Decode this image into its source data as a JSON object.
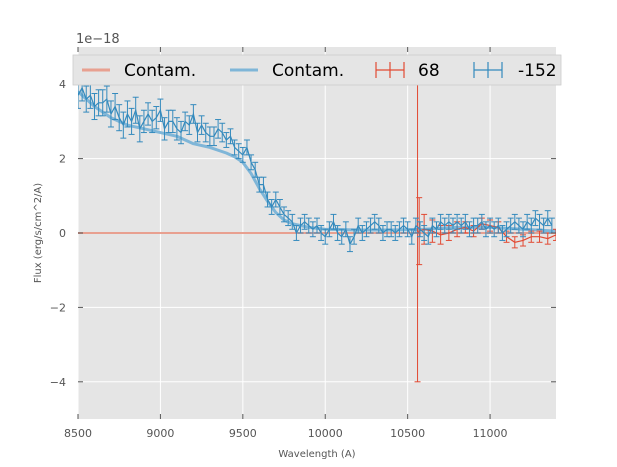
{
  "chart_data": {
    "type": "line",
    "title": "",
    "xlabel": "Wavelength (A)",
    "ylabel": "Flux (erg/s/cm^2/A)",
    "offset_text": "1e−18",
    "y_scale_factor": 1e-18,
    "xlim": [
      8500,
      11400
    ],
    "ylim": [
      -5,
      5
    ],
    "xticks": [
      8500,
      9000,
      9500,
      10000,
      10500,
      11000
    ],
    "xtick_labels": [
      "8500",
      "9000",
      "9500",
      "10000",
      "10500",
      "11000"
    ],
    "yticks": [
      -4,
      -2,
      0,
      2,
      4
    ],
    "ytick_labels": [
      "−4",
      "−2",
      "0",
      "2",
      "4"
    ],
    "grid": true,
    "legend_position": "top",
    "series": [
      {
        "name": "Contam.",
        "kind": "line",
        "color": "#E8A090",
        "x": [
          8500,
          11400
        ],
        "y": [
          0.0,
          0.0
        ]
      },
      {
        "name": "Contam.",
        "kind": "line",
        "color": "#7FB6D8",
        "x": [
          8500,
          8600,
          8700,
          8800,
          8900,
          9000,
          9100,
          9200,
          9300,
          9400,
          9450,
          9500,
          9550,
          9600,
          9650,
          9700,
          9750,
          9800,
          9900,
          10000,
          10200,
          10400,
          10600,
          10800,
          11000,
          11200,
          11400
        ],
        "y": [
          3.8,
          3.4,
          3.1,
          2.9,
          2.8,
          2.7,
          2.6,
          2.4,
          2.3,
          2.15,
          2.05,
          1.9,
          1.6,
          1.2,
          0.85,
          0.55,
          0.35,
          0.25,
          0.15,
          0.1,
          0.08,
          0.08,
          0.1,
          0.15,
          0.15,
          0.1,
          0.05
        ]
      },
      {
        "name": "68",
        "kind": "errorbar",
        "color": "#E24A33",
        "x": [
          10560,
          10570,
          10600,
          10650,
          10700,
          10750,
          10800,
          10850,
          10900,
          10950,
          11000,
          11050,
          11100,
          11150,
          11200,
          11250,
          11300,
          11350,
          11400
        ],
        "y": [
          0.0,
          0.05,
          0.1,
          0.05,
          -0.05,
          0.0,
          0.1,
          0.15,
          0.05,
          0.25,
          0.2,
          0.15,
          -0.1,
          -0.25,
          -0.2,
          -0.1,
          -0.1,
          -0.15,
          -0.05
        ],
        "yerr": [
          4.0,
          0.9,
          0.4,
          0.3,
          0.25,
          0.2,
          0.2,
          0.15,
          0.15,
          0.15,
          0.15,
          0.15,
          0.15,
          0.15,
          0.15,
          0.15,
          0.15,
          0.15,
          0.15
        ]
      },
      {
        "name": "-152",
        "kind": "errorbar",
        "color": "#348ABD",
        "x": [
          8500,
          8525,
          8550,
          8575,
          8600,
          8625,
          8650,
          8675,
          8700,
          8725,
          8750,
          8775,
          8800,
          8825,
          8850,
          8875,
          8900,
          8925,
          8950,
          8975,
          9000,
          9025,
          9050,
          9075,
          9100,
          9125,
          9150,
          9175,
          9200,
          9225,
          9250,
          9275,
          9300,
          9325,
          9350,
          9375,
          9400,
          9425,
          9450,
          9475,
          9500,
          9525,
          9550,
          9575,
          9600,
          9625,
          9650,
          9675,
          9700,
          9725,
          9750,
          9775,
          9800,
          9825,
          9850,
          9875,
          9900,
          9925,
          9950,
          9975,
          10000,
          10025,
          10050,
          10075,
          10100,
          10125,
          10150,
          10175,
          10200,
          10225,
          10250,
          10275,
          10300,
          10325,
          10350,
          10375,
          10400,
          10425,
          10450,
          10475,
          10500,
          10525,
          10550,
          10575,
          10600,
          10625,
          10650,
          10675,
          10700,
          10725,
          10750,
          10775,
          10800,
          10825,
          10850,
          10875,
          10900,
          10925,
          10950,
          10975,
          11000,
          11025,
          11050,
          11075,
          11100,
          11125,
          11150,
          11175,
          11200,
          11225,
          11250,
          11275,
          11300,
          11325,
          11350,
          11375
        ],
        "y": [
          3.7,
          3.9,
          3.6,
          3.7,
          3.4,
          3.5,
          3.5,
          3.6,
          3.2,
          3.4,
          3.1,
          2.9,
          3.2,
          3.0,
          3.3,
          2.8,
          3.0,
          3.2,
          3.0,
          3.1,
          3.3,
          2.8,
          3.0,
          3.0,
          2.8,
          2.7,
          3.0,
          2.9,
          3.2,
          2.7,
          2.9,
          2.7,
          2.6,
          2.6,
          2.8,
          2.7,
          2.5,
          2.6,
          2.3,
          2.2,
          2.1,
          2.3,
          1.9,
          1.7,
          1.3,
          1.3,
          0.9,
          0.7,
          0.9,
          0.7,
          0.5,
          0.4,
          0.3,
          0.0,
          0.2,
          0.3,
          0.2,
          0.1,
          0.2,
          0.0,
          -0.1,
          0.1,
          0.3,
          0.0,
          -0.1,
          0.1,
          -0.3,
          -0.1,
          0.2,
          0.0,
          0.1,
          0.2,
          0.3,
          0.2,
          0.0,
          0.1,
          0.1,
          0.0,
          0.1,
          0.2,
          0.1,
          -0.1,
          0.2,
          0.1,
          0.0,
          -0.1,
          0.2,
          0.1,
          0.3,
          0.2,
          0.3,
          0.2,
          0.3,
          0.2,
          0.3,
          0.1,
          0.2,
          0.2,
          0.3,
          0.1,
          0.2,
          0.1,
          0.2,
          0.0,
          0.1,
          0.2,
          0.3,
          0.2,
          0.1,
          0.3,
          0.2,
          0.4,
          0.3,
          0.2,
          0.4,
          0.2
        ],
        "yerr": [
          0.35,
          0.35,
          0.35,
          0.35,
          0.35,
          0.35,
          0.35,
          0.35,
          0.35,
          0.35,
          0.35,
          0.35,
          0.35,
          0.35,
          0.35,
          0.35,
          0.3,
          0.3,
          0.3,
          0.3,
          0.3,
          0.3,
          0.3,
          0.3,
          0.3,
          0.3,
          0.25,
          0.25,
          0.25,
          0.25,
          0.25,
          0.25,
          0.25,
          0.25,
          0.25,
          0.25,
          0.2,
          0.2,
          0.2,
          0.2,
          0.2,
          0.2,
          0.2,
          0.2,
          0.2,
          0.2,
          0.2,
          0.2,
          0.2,
          0.2,
          0.2,
          0.2,
          0.2,
          0.2,
          0.2,
          0.2,
          0.2,
          0.2,
          0.2,
          0.2,
          0.2,
          0.2,
          0.2,
          0.2,
          0.2,
          0.2,
          0.2,
          0.2,
          0.2,
          0.2,
          0.2,
          0.2,
          0.2,
          0.2,
          0.2,
          0.2,
          0.2,
          0.2,
          0.2,
          0.2,
          0.2,
          0.2,
          0.2,
          0.2,
          0.2,
          0.2,
          0.2,
          0.2,
          0.2,
          0.2,
          0.2,
          0.2,
          0.2,
          0.2,
          0.2,
          0.2,
          0.2,
          0.2,
          0.2,
          0.2,
          0.2,
          0.2,
          0.2,
          0.2,
          0.2,
          0.2,
          0.2,
          0.2,
          0.2,
          0.2,
          0.2,
          0.2,
          0.2,
          0.2,
          0.2,
          0.2
        ]
      }
    ]
  }
}
